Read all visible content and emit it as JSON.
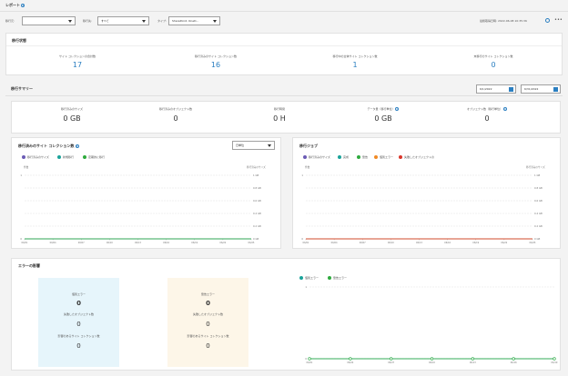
{
  "page": {
    "title": "レポート"
  },
  "filters": {
    "source_label": "移行元:",
    "source_value": "",
    "dest_label": "移行先:",
    "dest_value": "すべて",
    "type_label": "タイプ:",
    "type_value": "SharePoint, OneD..."
  },
  "last_updated": {
    "label": "最終取得日時:",
    "value": "2022-06-08 10:35:36"
  },
  "status": {
    "title": "移行状態",
    "items": [
      {
        "label": "サイト コレクションの合計数",
        "value": "17"
      },
      {
        "label": "移行済みのサイト コレクション数",
        "value": "16"
      },
      {
        "label": "移行中の全体サイト コレクション数",
        "value": "1"
      },
      {
        "label": "未移行のサイト コレクション数",
        "value": "0"
      }
    ]
  },
  "summary": {
    "title": "移行サマリー",
    "date_from": "6/1/2022",
    "date_to": "6/31/2022",
    "items": [
      {
        "label": "移行済みのサイズ",
        "value": "0 GB"
      },
      {
        "label": "移行済みのオブジェクト数",
        "value": "0"
      },
      {
        "label": "移行時間",
        "value": "0 H"
      },
      {
        "label": "データ量（移行単位）",
        "value": "0 GB"
      },
      {
        "label": "オブジェクト数（移行単位）",
        "value": "0"
      }
    ]
  },
  "chart_left": {
    "title": "移行済みのサイト コレクション数",
    "period": "日単位",
    "legend": [
      "移行済みのサイズ",
      "新規移行",
      "定期的に移行"
    ],
    "y_left_title": "件数",
    "y_right_title": "移行済みのサイズ"
  },
  "chart_right": {
    "title": "移行ジョブ",
    "legend": [
      "移行済みのサイズ",
      "完成",
      "警告",
      "個別エラー",
      "失敗したオブジェクトの"
    ],
    "y_left_title": "件数",
    "y_right_title": "移行済みのサイズ"
  },
  "errors": {
    "title": "エラーの影響",
    "box1": {
      "title": "個別エラー",
      "value": "0",
      "sub1": "失敗したオブジェクト数",
      "sub1_value": "0",
      "sub2": "影響のあるサイト コレクション数",
      "sub2_value": "0"
    },
    "box2": {
      "title": "警告エラー",
      "value": "0",
      "sub1": "失敗したオブジェクト数",
      "sub1_value": "0",
      "sub2": "影響のあるサイト コレクション数",
      "sub2_value": "0"
    },
    "legend": [
      "個別エラー",
      "警告エラー"
    ]
  },
  "colors": {
    "accent": "#2b7fc1",
    "purple": "#6b5bb5",
    "teal": "#1aa39a",
    "green": "#2eaa3d",
    "orange": "#f08a24",
    "red": "#d9352a",
    "err_box_blue": "#e6f5fb",
    "err_box_cream": "#fdf6e8"
  },
  "chart_data": [
    {
      "type": "line",
      "title": "移行済みのサイト コレクション数",
      "x": [
        "06/01",
        "06/04",
        "06/07",
        "06/10",
        "06/13",
        "06/16",
        "06/19",
        "06/22",
        "06/25"
      ],
      "ylim_left": [
        0,
        1
      ],
      "y_left_ticks": [
        "1",
        "0"
      ],
      "y_right_ticks": [
        "1 GB",
        "0.8 GB",
        "0.6 GB",
        "0.4 GB",
        "0.2 GB",
        "0 GB"
      ],
      "series": [
        {
          "name": "移行済みのサイズ",
          "values": [
            0,
            0,
            0,
            0,
            0,
            0,
            0,
            0,
            0
          ]
        },
        {
          "name": "新規移行",
          "values": [
            0,
            0,
            0,
            0,
            0,
            0,
            0,
            0,
            0
          ]
        },
        {
          "name": "定期的に移行",
          "values": [
            0,
            0,
            0,
            0,
            0,
            0,
            0,
            0,
            0
          ]
        }
      ]
    },
    {
      "type": "line",
      "title": "移行ジョブ",
      "x": [
        "06/01",
        "06/04",
        "06/07",
        "06/10",
        "06/13",
        "06/16",
        "06/19",
        "06/22",
        "06/25"
      ],
      "ylim_left": [
        0,
        1
      ],
      "y_left_ticks": [
        "1",
        "0"
      ],
      "y_right_ticks": [
        "1 GB",
        "0.8 GB",
        "0.6 GB",
        "0.4 GB",
        "0.2 GB",
        "0 GB"
      ],
      "series": [
        {
          "name": "移行済みのサイズ",
          "values": [
            0,
            0,
            0,
            0,
            0,
            0,
            0,
            0,
            0
          ]
        },
        {
          "name": "完成",
          "values": [
            0,
            0,
            0,
            0,
            0,
            0,
            0,
            0,
            0
          ]
        },
        {
          "name": "警告",
          "values": [
            0,
            0,
            0,
            0,
            0,
            0,
            0,
            0,
            0
          ]
        },
        {
          "name": "個別エラー",
          "values": [
            0,
            0,
            0,
            0,
            0,
            0,
            0,
            0,
            0
          ]
        },
        {
          "name": "失敗したオブジェクトの",
          "values": [
            0,
            0,
            0,
            0,
            0,
            0,
            0,
            0,
            0
          ]
        }
      ]
    },
    {
      "type": "line",
      "title": "エラーの影響",
      "x": [
        "06/01",
        "06/04",
        "06/07",
        "06/10",
        "06/13",
        "06/16",
        "06/19"
      ],
      "ylim": [
        0,
        1
      ],
      "y_ticks": [
        "1",
        "0"
      ],
      "series": [
        {
          "name": "個別エラー",
          "values": [
            0,
            0,
            0,
            0,
            0,
            0,
            0
          ]
        },
        {
          "name": "警告エラー",
          "values": [
            0,
            0,
            0,
            0,
            0,
            0,
            0
          ]
        }
      ]
    }
  ]
}
